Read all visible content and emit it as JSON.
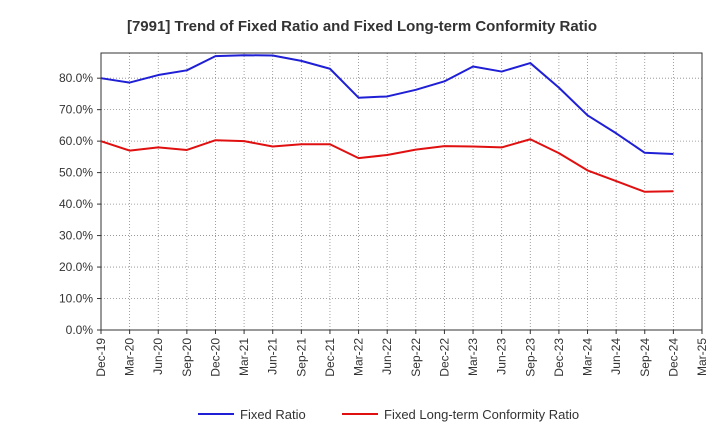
{
  "chart_data": {
    "type": "line",
    "title": "[7991]  Trend of Fixed Ratio and Fixed Long-term Conformity Ratio",
    "xlabel": "",
    "ylabel": "",
    "categories": [
      "Dec-19",
      "Mar-20",
      "Jun-20",
      "Sep-20",
      "Dec-20",
      "Mar-21",
      "Jun-21",
      "Sep-21",
      "Dec-21",
      "Mar-22",
      "Jun-22",
      "Sep-22",
      "Dec-22",
      "Mar-23",
      "Jun-23",
      "Sep-23",
      "Dec-23",
      "Mar-24",
      "Jun-24",
      "Sep-24",
      "Dec-24",
      "Mar-25"
    ],
    "ylim": [
      0,
      88
    ],
    "ytick_labels": [
      "0.0%",
      "10.0%",
      "20.0%",
      "30.0%",
      "40.0%",
      "50.0%",
      "60.0%",
      "70.0%",
      "80.0%"
    ],
    "yticks": [
      0,
      10,
      20,
      30,
      40,
      50,
      60,
      70,
      80
    ],
    "grid": true,
    "legend_position": "bottom",
    "series": [
      {
        "name": "Fixed Ratio",
        "color": "#1f1fd6",
        "values": [
          80.0,
          78.6,
          81.0,
          82.5,
          87.0,
          87.3,
          87.2,
          85.5,
          83.0,
          73.8,
          74.2,
          76.3,
          79.0,
          83.7,
          82.1,
          84.8,
          77.0,
          68.2,
          62.5,
          56.3,
          55.9,
          null
        ]
      },
      {
        "name": "Fixed Long-term Conformity Ratio",
        "color": "#e01010",
        "values": [
          60.0,
          57.0,
          58.0,
          57.2,
          60.3,
          60.0,
          58.3,
          59.0,
          59.0,
          54.6,
          55.6,
          57.3,
          58.4,
          58.3,
          58.0,
          60.6,
          56.2,
          50.7,
          47.3,
          43.9,
          44.1,
          null
        ]
      }
    ]
  }
}
